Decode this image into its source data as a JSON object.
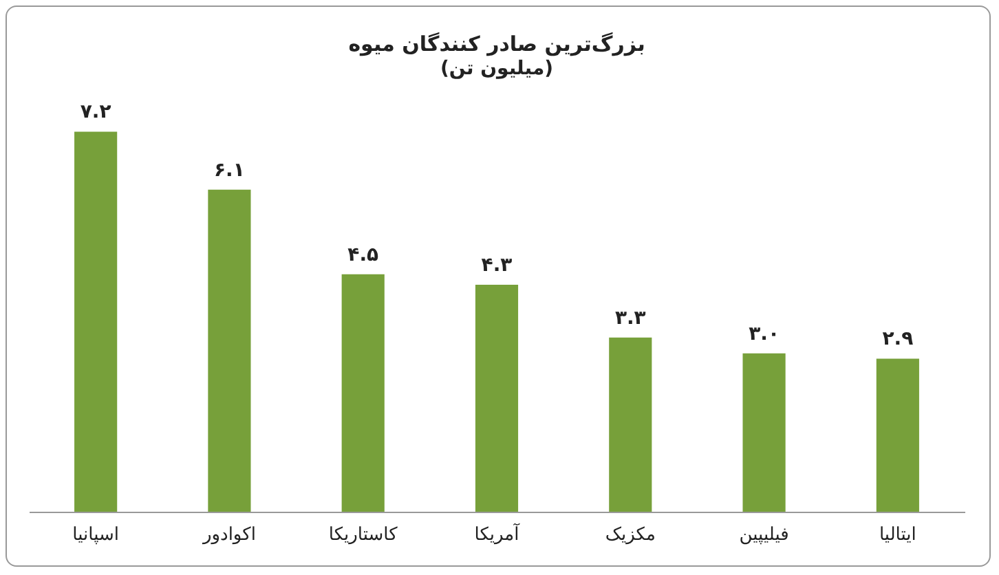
{
  "chart_data": {
    "type": "bar",
    "title": "بزرگ‌ترین صادر کنندگان میوه",
    "subtitle": "(میلیون تن)",
    "categories": [
      "اسپانیا",
      "اکوادور",
      "کاستاریکا",
      "آمریکا",
      "مکزیک",
      "فیلیپین",
      "ایتالیا"
    ],
    "values": [
      7.2,
      6.1,
      4.5,
      4.3,
      3.3,
      3.0,
      2.9
    ],
    "value_labels": [
      "۷.۲",
      "۶.۱",
      "۴.۵",
      "۴.۳",
      "۳.۳",
      "۳.۰",
      "۲.۹"
    ],
    "color": "#77a03a",
    "tick_labels": "x"
  }
}
